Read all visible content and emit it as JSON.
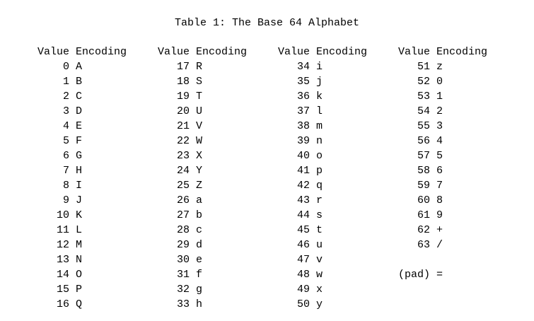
{
  "title": "Table 1: The Base 64 Alphabet",
  "header": {
    "value": "Value",
    "encoding": "Encoding"
  },
  "groups": [
    {
      "rows": [
        {
          "value": "0",
          "encoding": "A"
        },
        {
          "value": "1",
          "encoding": "B"
        },
        {
          "value": "2",
          "encoding": "C"
        },
        {
          "value": "3",
          "encoding": "D"
        },
        {
          "value": "4",
          "encoding": "E"
        },
        {
          "value": "5",
          "encoding": "F"
        },
        {
          "value": "6",
          "encoding": "G"
        },
        {
          "value": "7",
          "encoding": "H"
        },
        {
          "value": "8",
          "encoding": "I"
        },
        {
          "value": "9",
          "encoding": "J"
        },
        {
          "value": "10",
          "encoding": "K"
        },
        {
          "value": "11",
          "encoding": "L"
        },
        {
          "value": "12",
          "encoding": "M"
        },
        {
          "value": "13",
          "encoding": "N"
        },
        {
          "value": "14",
          "encoding": "O"
        },
        {
          "value": "15",
          "encoding": "P"
        },
        {
          "value": "16",
          "encoding": "Q"
        }
      ]
    },
    {
      "rows": [
        {
          "value": "17",
          "encoding": "R"
        },
        {
          "value": "18",
          "encoding": "S"
        },
        {
          "value": "19",
          "encoding": "T"
        },
        {
          "value": "20",
          "encoding": "U"
        },
        {
          "value": "21",
          "encoding": "V"
        },
        {
          "value": "22",
          "encoding": "W"
        },
        {
          "value": "23",
          "encoding": "X"
        },
        {
          "value": "24",
          "encoding": "Y"
        },
        {
          "value": "25",
          "encoding": "Z"
        },
        {
          "value": "26",
          "encoding": "a"
        },
        {
          "value": "27",
          "encoding": "b"
        },
        {
          "value": "28",
          "encoding": "c"
        },
        {
          "value": "29",
          "encoding": "d"
        },
        {
          "value": "30",
          "encoding": "e"
        },
        {
          "value": "31",
          "encoding": "f"
        },
        {
          "value": "32",
          "encoding": "g"
        },
        {
          "value": "33",
          "encoding": "h"
        }
      ]
    },
    {
      "rows": [
        {
          "value": "34",
          "encoding": "i"
        },
        {
          "value": "35",
          "encoding": "j"
        },
        {
          "value": "36",
          "encoding": "k"
        },
        {
          "value": "37",
          "encoding": "l"
        },
        {
          "value": "38",
          "encoding": "m"
        },
        {
          "value": "39",
          "encoding": "n"
        },
        {
          "value": "40",
          "encoding": "o"
        },
        {
          "value": "41",
          "encoding": "p"
        },
        {
          "value": "42",
          "encoding": "q"
        },
        {
          "value": "43",
          "encoding": "r"
        },
        {
          "value": "44",
          "encoding": "s"
        },
        {
          "value": "45",
          "encoding": "t"
        },
        {
          "value": "46",
          "encoding": "u"
        },
        {
          "value": "47",
          "encoding": "v"
        },
        {
          "value": "48",
          "encoding": "w"
        },
        {
          "value": "49",
          "encoding": "x"
        },
        {
          "value": "50",
          "encoding": "y"
        }
      ]
    },
    {
      "rows": [
        {
          "value": "51",
          "encoding": "z"
        },
        {
          "value": "52",
          "encoding": "0"
        },
        {
          "value": "53",
          "encoding": "1"
        },
        {
          "value": "54",
          "encoding": "2"
        },
        {
          "value": "55",
          "encoding": "3"
        },
        {
          "value": "56",
          "encoding": "4"
        },
        {
          "value": "57",
          "encoding": "5"
        },
        {
          "value": "58",
          "encoding": "6"
        },
        {
          "value": "59",
          "encoding": "7"
        },
        {
          "value": "60",
          "encoding": "8"
        },
        {
          "value": "61",
          "encoding": "9"
        },
        {
          "value": "62",
          "encoding": "+"
        },
        {
          "value": "63",
          "encoding": "/"
        },
        {
          "value": "",
          "encoding": ""
        },
        {
          "value": "(pad)",
          "encoding": "="
        }
      ]
    }
  ]
}
